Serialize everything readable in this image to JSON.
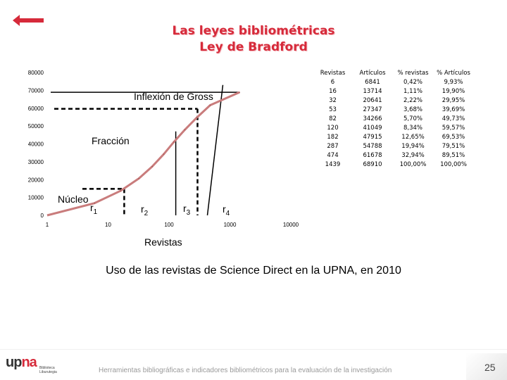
{
  "slide": {
    "title_line1": "Las leyes bibliométricas",
    "title_line2": "Ley de Bradford",
    "subtitle": "Uso de las revistas de Science Direct en la UPNA, en 2010",
    "footer_text": "Herramientas bibliográficas e indicadores bibliométricos para la evaluación de la investigación",
    "page_number": "25",
    "logo": {
      "main": "up",
      "accent": "na",
      "line1": "Biblioteca",
      "line2": "Liburutegia"
    },
    "colors": {
      "title": "#d62a3a",
      "curve": "#c97c7c",
      "dashed": "#000000"
    }
  },
  "chart_data": {
    "type": "line",
    "xscale": "log",
    "xlabel": "Revistas",
    "ylabel": "",
    "xlim": [
      1,
      10000
    ],
    "ylim": [
      0,
      80000
    ],
    "x_ticks": [
      "1",
      "10",
      "100",
      "1000",
      "10000"
    ],
    "y_ticks": [
      "0",
      "10000",
      "20000",
      "30000",
      "40000",
      "50000",
      "60000",
      "70000",
      "80000"
    ],
    "series": [
      {
        "x": [
          6,
          16,
          32,
          53,
          82,
          120,
          182,
          287,
          474,
          1439
        ],
        "values": [
          6841,
          13714,
          20641,
          27347,
          34266,
          41049,
          47915,
          54788,
          61678,
          68910
        ]
      }
    ],
    "annotations": {
      "inflexion": "Inflexión de Gross",
      "fraccion": "Fracción",
      "nucleo": "Núcleo",
      "r": [
        {
          "base": "r",
          "sub": "1"
        },
        {
          "base": "r",
          "sub": "2"
        },
        {
          "base": "r",
          "sub": "3"
        },
        {
          "base": "r",
          "sub": "4"
        }
      ]
    },
    "table": {
      "headers": [
        "Revistas",
        "Artículos",
        "% revistas",
        "% Artículos"
      ],
      "rows": [
        [
          "6",
          "6841",
          "0,42%",
          "9,93%"
        ],
        [
          "16",
          "13714",
          "1,11%",
          "19,90%"
        ],
        [
          "32",
          "20641",
          "2,22%",
          "29,95%"
        ],
        [
          "53",
          "27347",
          "3,68%",
          "39,69%"
        ],
        [
          "82",
          "34266",
          "5,70%",
          "49,73%"
        ],
        [
          "120",
          "41049",
          "8,34%",
          "59,57%"
        ],
        [
          "182",
          "47915",
          "12,65%",
          "69,53%"
        ],
        [
          "287",
          "54788",
          "19,94%",
          "79,51%"
        ],
        [
          "474",
          "61678",
          "32,94%",
          "89,51%"
        ],
        [
          "1439",
          "68910",
          "100,00%",
          "100,00%"
        ]
      ]
    }
  }
}
